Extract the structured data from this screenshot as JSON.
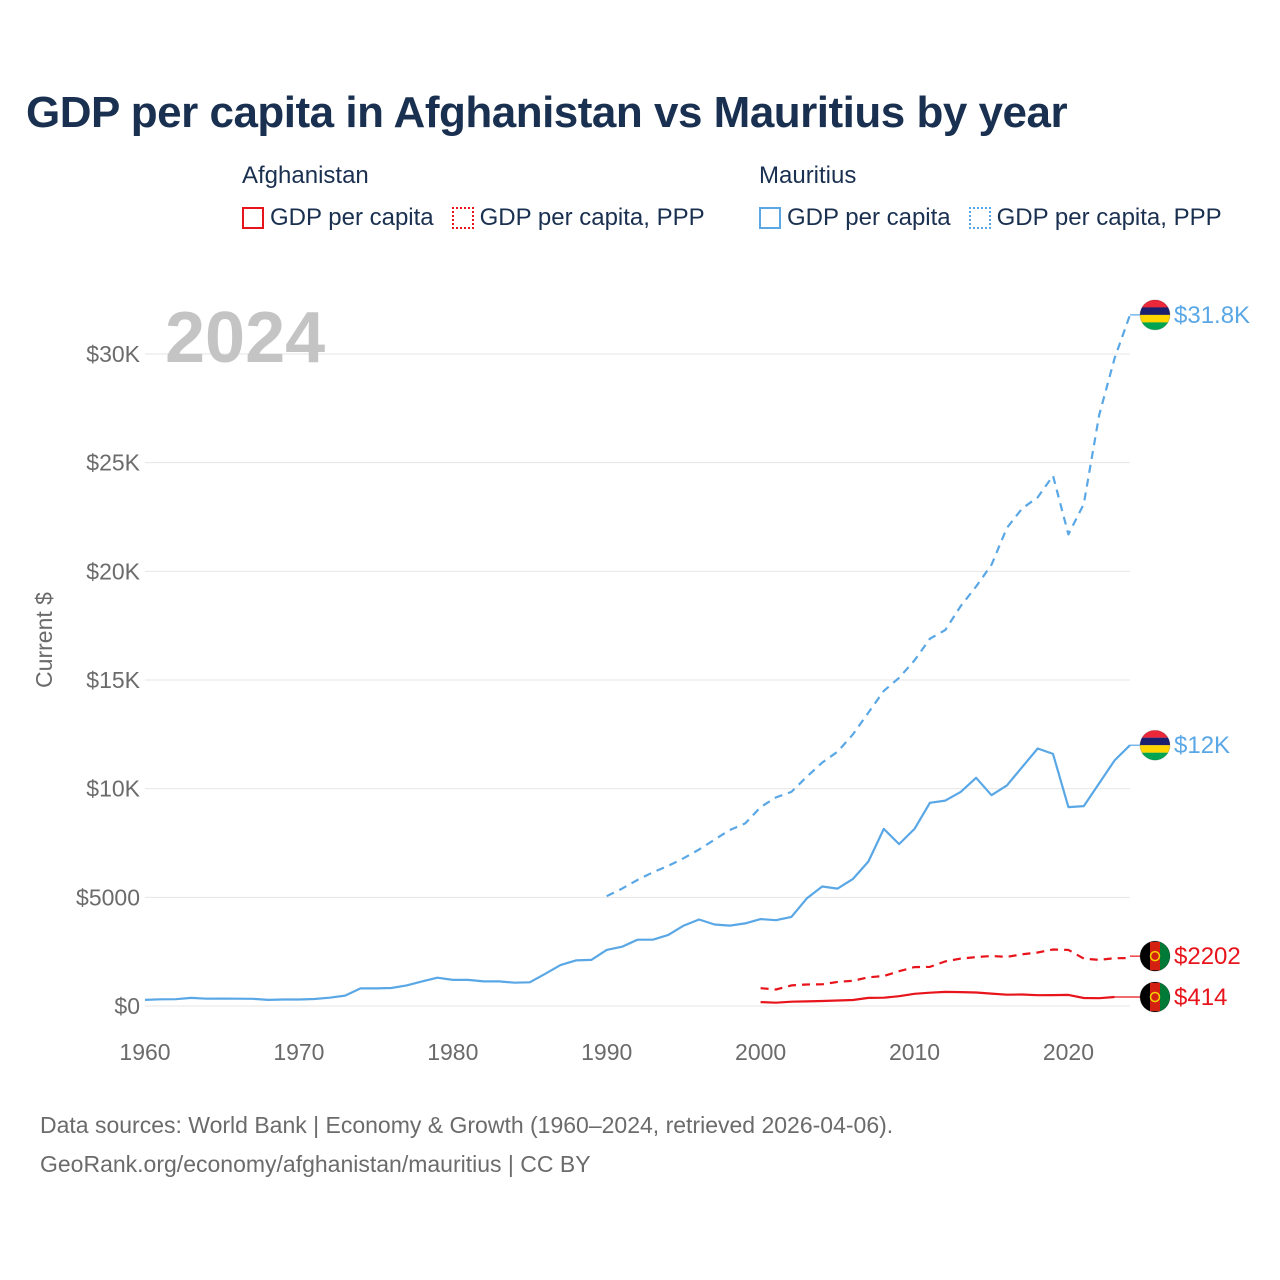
{
  "title": "GDP per capita in Afghanistan vs Mauritius by year",
  "legend": {
    "afghanistan": {
      "name": "Afghanistan",
      "items": [
        "GDP per capita",
        "GDP per capita, PPP"
      ]
    },
    "mauritius": {
      "name": "Mauritius",
      "items": [
        "GDP per capita",
        "GDP per capita, PPP"
      ]
    }
  },
  "colors": {
    "afghanistan": "#e8141b",
    "mauritius": "#5aa7e6"
  },
  "year_watermark": "2024",
  "footer": {
    "line1": "Data sources: World Bank | Economy & Growth (1960–2024, retrieved 2026-04-06).",
    "line2": "GeoRank.org/economy/afghanistan/mauritius | CC BY"
  },
  "chart_data": {
    "type": "line",
    "title": "GDP per capita in Afghanistan vs Mauritius by year",
    "xlabel": "",
    "ylabel": "Current $",
    "xlim": [
      1960,
      2024
    ],
    "ylim": [
      0,
      32000
    ],
    "x_ticks": [
      1960,
      1970,
      1980,
      1990,
      2000,
      2010,
      2020
    ],
    "x_tick_labels": [
      "1960",
      "1970",
      "1980",
      "1990",
      "2000",
      "2010",
      "2020"
    ],
    "y_ticks": [
      0,
      5000,
      10000,
      15000,
      20000,
      25000,
      30000
    ],
    "y_tick_labels": [
      "$0",
      "$5000",
      "$10K",
      "$15K",
      "$20K",
      "$25K",
      "$30K"
    ],
    "grid": true,
    "series": [
      {
        "name": "Mauritius GDP per capita, PPP",
        "country": "mauritius",
        "style": "dashed",
        "end_label": "$31.8K",
        "x": [
          1990,
          1991,
          1992,
          1993,
          1994,
          1995,
          1996,
          1997,
          1998,
          1999,
          2000,
          2001,
          2002,
          2003,
          2004,
          2005,
          2006,
          2007,
          2008,
          2009,
          2010,
          2011,
          2012,
          2013,
          2014,
          2015,
          2016,
          2017,
          2018,
          2019,
          2020,
          2021,
          2022,
          2023,
          2024
        ],
        "values": [
          5050,
          5400,
          5800,
          6150,
          6450,
          6800,
          7200,
          7650,
          8100,
          8400,
          9150,
          9600,
          9850,
          10550,
          11200,
          11700,
          12500,
          13500,
          14500,
          15100,
          15900,
          16900,
          17300,
          18400,
          19300,
          20300,
          22000,
          22900,
          23400,
          24400,
          21700,
          23100,
          27200,
          29800,
          31800
        ]
      },
      {
        "name": "Mauritius GDP per capita",
        "country": "mauritius",
        "style": "solid",
        "end_label": "$12K",
        "x": [
          1960,
          1961,
          1962,
          1963,
          1964,
          1965,
          1966,
          1967,
          1968,
          1969,
          1970,
          1971,
          1972,
          1973,
          1974,
          1975,
          1976,
          1977,
          1978,
          1979,
          1980,
          1981,
          1982,
          1983,
          1984,
          1985,
          1986,
          1987,
          1988,
          1989,
          1990,
          1991,
          1992,
          1993,
          1994,
          1995,
          1996,
          1997,
          1998,
          1999,
          2000,
          2001,
          2002,
          2003,
          2004,
          2005,
          2006,
          2007,
          2008,
          2009,
          2010,
          2011,
          2012,
          2013,
          2014,
          2015,
          2016,
          2017,
          2018,
          2019,
          2020,
          2021,
          2022,
          2023,
          2024
        ],
        "values": [
          280,
          310,
          315,
          375,
          335,
          340,
          335,
          330,
          280,
          300,
          300,
          320,
          380,
          480,
          810,
          810,
          830,
          950,
          1130,
          1300,
          1200,
          1200,
          1130,
          1130,
          1070,
          1090,
          1480,
          1880,
          2100,
          2120,
          2580,
          2730,
          3050,
          3050,
          3270,
          3700,
          3980,
          3750,
          3700,
          3800,
          4000,
          3950,
          4100,
          4950,
          5500,
          5400,
          5850,
          6650,
          8150,
          7450,
          8150,
          9350,
          9450,
          9850,
          10500,
          9700,
          10150,
          11000,
          11850,
          11600,
          9150,
          9200,
          10250,
          11300,
          12000
        ]
      },
      {
        "name": "Afghanistan GDP per capita, PPP",
        "country": "afghanistan",
        "style": "dashed",
        "end_label": "$2202",
        "x": [
          2000,
          2001,
          2002,
          2003,
          2004,
          2005,
          2006,
          2007,
          2008,
          2009,
          2010,
          2011,
          2012,
          2013,
          2014,
          2015,
          2016,
          2017,
          2018,
          2019,
          2020,
          2021,
          2022,
          2023,
          2024
        ],
        "values": [
          820,
          760,
          950,
          990,
          1000,
          1110,
          1160,
          1320,
          1380,
          1600,
          1790,
          1800,
          2050,
          2180,
          2250,
          2300,
          2260,
          2380,
          2460,
          2600,
          2580,
          2180,
          2120,
          2200,
          2202
        ]
      },
      {
        "name": "Afghanistan GDP per capita",
        "country": "afghanistan",
        "style": "solid",
        "end_label": "$414",
        "x": [
          2000,
          2001,
          2002,
          2003,
          2004,
          2005,
          2006,
          2007,
          2008,
          2009,
          2010,
          2011,
          2012,
          2013,
          2014,
          2015,
          2016,
          2017,
          2018,
          2019,
          2020,
          2021,
          2022,
          2023
        ],
        "values": [
          180,
          150,
          200,
          210,
          230,
          255,
          275,
          375,
          380,
          450,
          560,
          610,
          650,
          640,
          620,
          570,
          520,
          530,
          495,
          500,
          510,
          370,
          360,
          414
        ]
      }
    ]
  }
}
